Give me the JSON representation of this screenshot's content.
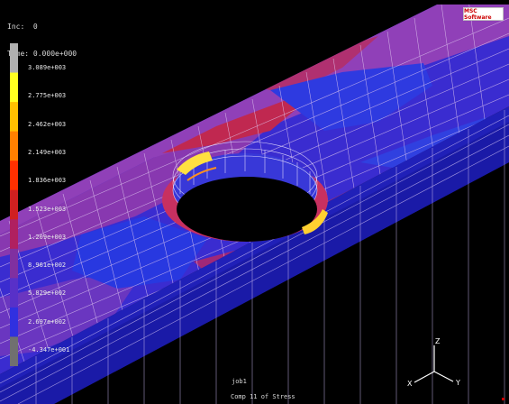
{
  "header": {
    "inc_label": "Inc:",
    "inc_value": "0",
    "time_label": "Time:",
    "time_value": "0.000e+000"
  },
  "logo": {
    "text": "MSC Software"
  },
  "legend": {
    "labels": [
      "3.089e+003",
      "2.775e+003",
      "2.462e+003",
      "2.149e+003",
      "1.836e+003",
      "1.523e+003",
      "1.209e+003",
      "8.961e+002",
      "5.829e+002",
      "2.697e+002",
      "-4.347e+001"
    ],
    "colors": [
      "#b0b0b0",
      "#ffff20",
      "#ffc000",
      "#ff8000",
      "#ff3000",
      "#d02020",
      "#b02060",
      "#8030a0",
      "#5830c8",
      "#3030e0",
      "#707070"
    ]
  },
  "footer": {
    "job_name": "job1",
    "component": "Comp 11 of Stress"
  },
  "axes": {
    "z": "Z",
    "y": "Y",
    "x": "X"
  },
  "accent": {
    "corner_mark": "#cc0000"
  }
}
